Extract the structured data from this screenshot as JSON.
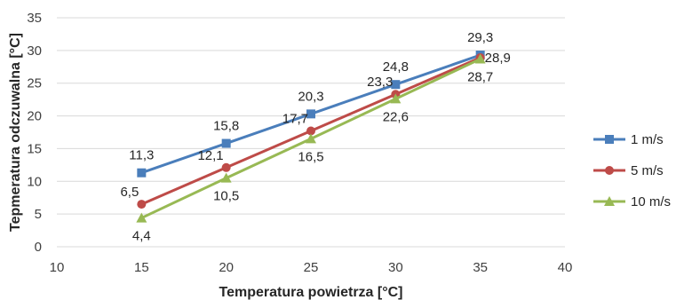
{
  "chart_data": {
    "type": "line",
    "title": "",
    "xlabel": "Temperatura powietrza [°C]",
    "ylabel": "Tepmeratura odczuwalna [°C]",
    "xlim": [
      10,
      40
    ],
    "ylim": [
      0,
      35
    ],
    "x_ticks": [
      "10",
      "15",
      "20",
      "25",
      "30",
      "35",
      "40"
    ],
    "y_ticks": [
      "0",
      "5",
      "10",
      "15",
      "20",
      "25",
      "30",
      "35"
    ],
    "grid": "horizontal",
    "legend": "right",
    "x": [
      15,
      20,
      25,
      30,
      35
    ],
    "series": [
      {
        "name": "1 m/s",
        "marker": "square",
        "color": "#4a7ebb",
        "values": [
          11.3,
          15.8,
          20.3,
          24.8,
          29.3
        ],
        "labels": [
          "11,3",
          "15,8",
          "20,3",
          "24,8",
          "29,3"
        ],
        "label_position": "above"
      },
      {
        "name": "5 m/s",
        "marker": "circle",
        "color": "#be4b48",
        "values": [
          6.5,
          12.1,
          17.7,
          23.3,
          28.9
        ],
        "labels": [
          "6,5",
          "12,1",
          "17,7",
          "23,3",
          "28,9"
        ],
        "label_position": "left"
      },
      {
        "name": "10 m/s",
        "marker": "triangle",
        "color": "#98b954",
        "values": [
          4.4,
          10.5,
          16.5,
          22.6,
          28.7
        ],
        "labels": [
          "4,4",
          "10,5",
          "16,5",
          "22,6",
          "28,7"
        ],
        "label_position": "below"
      }
    ]
  }
}
